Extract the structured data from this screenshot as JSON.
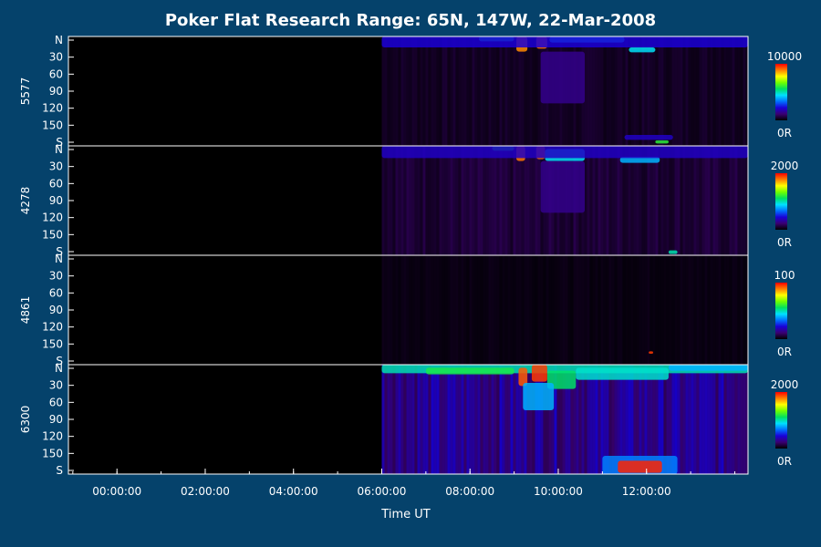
{
  "chart_data": {
    "type": "heatmap",
    "title": "Poker Flat Research Range: 65N, 147W, 22-Mar-2008",
    "xlabel": "Time UT",
    "x_ticks": [
      "00:00:00",
      "02:00:00",
      "04:00:00",
      "06:00:00",
      "08:00:00",
      "10:00:00",
      "12:00:00"
    ],
    "x_tick_hours": [
      0,
      2,
      4,
      6,
      8,
      10,
      12
    ],
    "xlim_hours": [
      -1.1,
      14.3
    ],
    "data_start_hours": 6.0,
    "y_ticks": [
      "N",
      "30",
      "60",
      "90",
      "120",
      "150",
      "S"
    ],
    "y_tick_values": [
      0,
      30,
      60,
      90,
      120,
      150,
      180
    ],
    "ylim": [
      0,
      180
    ],
    "colorbar_colors": [
      "#000000",
      "#3a0070",
      "#1a00d8",
      "#0070ff",
      "#00e0ff",
      "#00e060",
      "#70ff00",
      "#ffff00",
      "#ff8000",
      "#ff0000"
    ],
    "panels": [
      {
        "name": "5577",
        "cbar_max": "10000",
        "cbar_min": "0R",
        "bg_intensity": 0.04,
        "features": [
          {
            "t0": 9.05,
            "t1": 9.3,
            "y0": 0,
            "y1": 25,
            "level": 0.88
          },
          {
            "t0": 9.5,
            "t1": 9.75,
            "y0": 0,
            "y1": 20,
            "level": 0.9
          },
          {
            "t0": 8.2,
            "t1": 9.0,
            "y0": 0,
            "y1": 8,
            "level": 0.5
          },
          {
            "t0": 9.8,
            "t1": 11.5,
            "y0": 0,
            "y1": 10,
            "level": 0.45
          },
          {
            "t0": 11.6,
            "t1": 12.2,
            "y0": 18,
            "y1": 26,
            "level": 0.45
          },
          {
            "t0": 6.0,
            "t1": 14.3,
            "y0": 0,
            "y1": 18,
            "level": 0.22
          },
          {
            "t0": 9.6,
            "t1": 10.6,
            "y0": 25,
            "y1": 110,
            "level": 0.14
          },
          {
            "t0": 11.5,
            "t1": 12.6,
            "y0": 162,
            "y1": 170,
            "level": 0.2
          },
          {
            "t0": 12.2,
            "t1": 12.5,
            "y0": 171,
            "y1": 176,
            "level": 0.6
          }
        ]
      },
      {
        "name": "4278",
        "cbar_max": "2000",
        "cbar_min": "0R",
        "bg_intensity": 0.06,
        "features": [
          {
            "t0": 9.05,
            "t1": 9.25,
            "y0": 0,
            "y1": 25,
            "level": 0.9
          },
          {
            "t0": 9.5,
            "t1": 9.7,
            "y0": 0,
            "y1": 22,
            "level": 0.9
          },
          {
            "t0": 8.5,
            "t1": 9.0,
            "y0": 0,
            "y1": 8,
            "level": 0.55
          },
          {
            "t0": 9.7,
            "t1": 10.6,
            "y0": 5,
            "y1": 25,
            "level": 0.45
          },
          {
            "t0": 11.4,
            "t1": 12.3,
            "y0": 18,
            "y1": 28,
            "level": 0.4
          },
          {
            "t0": 6.0,
            "t1": 14.3,
            "y0": 0,
            "y1": 20,
            "level": 0.2
          },
          {
            "t0": 9.6,
            "t1": 10.6,
            "y0": 25,
            "y1": 110,
            "level": 0.14
          },
          {
            "t0": 12.5,
            "t1": 12.7,
            "y0": 172,
            "y1": 178,
            "level": 0.5
          }
        ]
      },
      {
        "name": "4861",
        "cbar_max": "100",
        "cbar_min": "0R",
        "bg_intensity": 0.02,
        "features": [
          {
            "t0": 12.05,
            "t1": 12.15,
            "y0": 158,
            "y1": 162,
            "level": 0.95
          }
        ]
      },
      {
        "name": "6300",
        "cbar_max": "2000",
        "cbar_min": "0R",
        "bg_intensity": 0.16,
        "features": [
          {
            "t0": 6.0,
            "t1": 14.3,
            "y0": 0,
            "y1": 14,
            "level": 0.5
          },
          {
            "t0": 7.0,
            "t1": 9.0,
            "y0": 5,
            "y1": 16,
            "level": 0.58
          },
          {
            "t0": 9.1,
            "t1": 9.3,
            "y0": 5,
            "y1": 35,
            "level": 0.92
          },
          {
            "t0": 9.4,
            "t1": 9.75,
            "y0": 0,
            "y1": 28,
            "level": 0.95
          },
          {
            "t0": 9.75,
            "t1": 10.4,
            "y0": 10,
            "y1": 40,
            "level": 0.55
          },
          {
            "t0": 9.2,
            "t1": 9.9,
            "y0": 30,
            "y1": 75,
            "level": 0.4
          },
          {
            "t0": 10.4,
            "t1": 12.5,
            "y0": 5,
            "y1": 25,
            "level": 0.48
          },
          {
            "t0": 12.5,
            "t1": 14.3,
            "y0": 0,
            "y1": 10,
            "level": 0.4
          },
          {
            "t0": 11.0,
            "t1": 12.7,
            "y0": 150,
            "y1": 180,
            "level": 0.35
          },
          {
            "t0": 11.35,
            "t1": 12.35,
            "y0": 158,
            "y1": 178,
            "level": 0.97
          }
        ]
      }
    ]
  }
}
